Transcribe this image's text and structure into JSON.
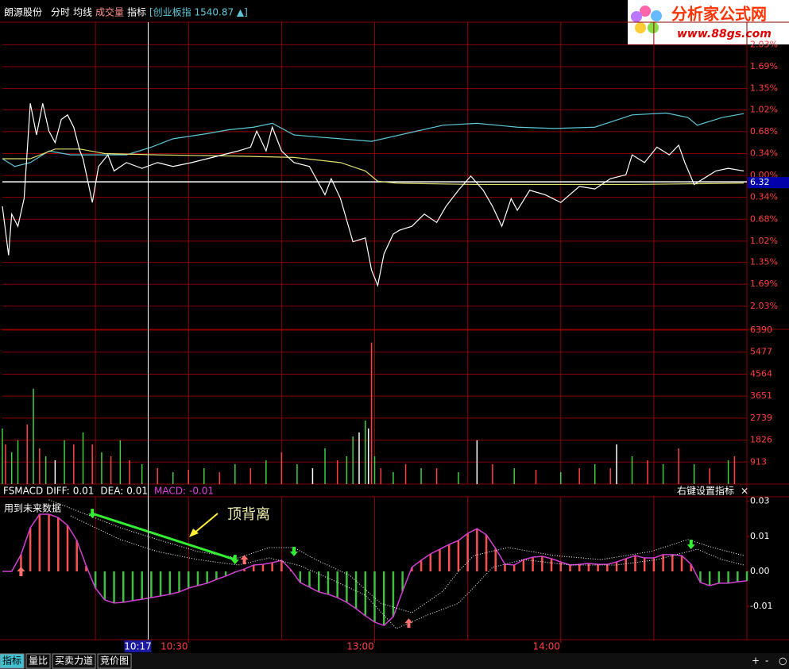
{
  "header": {
    "stock": "朗源股份",
    "menu": [
      "分时",
      "均线",
      "成交量",
      "指标"
    ],
    "index_label": "[创业板指 1540.87 ▲]",
    "logo_title": "分析家公式网",
    "logo_url": "www.88gs.com"
  },
  "time_axis": {
    "xlim": [
      0,
      240
    ],
    "xticks": [
      {
        "value": 60,
        "label": "10:30"
      },
      {
        "value": 120,
        "label": "13:00"
      },
      {
        "value": 180,
        "label": "14:00"
      }
    ],
    "grid": [
      30,
      60,
      90,
      120,
      150,
      180,
      210
    ],
    "cursor": {
      "value": 47,
      "label": "10:17"
    }
  },
  "chart_data": [
    {
      "type": "line",
      "ylim": [
        -2.39,
        2.38
      ],
      "grid": true,
      "prev_close": 6.32,
      "yticks": [
        {
          "value": 2.03,
          "label": "2.03%"
        },
        {
          "value": 1.69,
          "label": "1.69%"
        },
        {
          "value": 1.35,
          "label": "1.35%"
        },
        {
          "value": 1.02,
          "label": "1.02%"
        },
        {
          "value": 0.68,
          "label": "0.68%"
        },
        {
          "value": 0.34,
          "label": "0.34%"
        },
        {
          "value": 0,
          "label": "0.00%"
        },
        {
          "value": -0.34,
          "label": "0.34%"
        },
        {
          "value": -0.68,
          "label": "0.68%"
        },
        {
          "value": -1.02,
          "label": "1.02%"
        },
        {
          "value": -1.35,
          "label": "1.35%"
        },
        {
          "value": -1.69,
          "label": "1.69%"
        },
        {
          "value": -2.03,
          "label": "2.03%"
        }
      ],
      "series": [
        {
          "color": "#5fc8d8",
          "x": [
            0,
            4,
            9,
            15,
            22,
            27,
            33,
            40,
            48,
            55,
            66,
            73,
            81,
            87,
            94,
            101,
            109,
            119,
            130,
            142,
            153,
            166,
            178,
            191,
            203,
            214,
            221,
            224,
            232,
            239
          ],
          "values": [
            0.26,
            0.14,
            0.2,
            0.38,
            0.32,
            0.32,
            0.32,
            0.32,
            0.44,
            0.57,
            0.65,
            0.71,
            0.75,
            0.81,
            0.63,
            0.6,
            0.57,
            0.53,
            0.65,
            0.78,
            0.81,
            0.75,
            0.73,
            0.75,
            0.94,
            0.97,
            0.9,
            0.78,
            0.9,
            0.96
          ]
        },
        {
          "color": "#e0e070",
          "x": [
            0,
            9,
            17,
            25,
            33,
            50,
            76,
            94,
            109,
            117,
            121,
            127,
            152,
            178,
            203,
            239
          ],
          "values": [
            0.26,
            0.26,
            0.41,
            0.41,
            0.34,
            0.32,
            0.3,
            0.28,
            0.2,
            0.07,
            -0.09,
            -0.12,
            -0.14,
            -0.14,
            -0.14,
            -0.12
          ]
        },
        {
          "color": "#ffffff",
          "x": [
            0,
            2,
            3,
            5,
            7,
            9,
            11,
            13,
            15,
            17,
            19,
            21,
            23,
            25,
            26,
            29,
            31,
            34,
            36,
            40,
            45,
            50,
            55,
            61,
            66,
            71,
            76,
            80,
            82,
            85,
            87,
            90,
            94,
            99,
            104,
            106,
            109,
            113,
            117,
            119,
            121,
            123,
            126,
            128,
            132,
            136,
            140,
            143,
            147,
            151,
            155,
            158,
            161,
            164,
            166,
            170,
            175,
            180,
            186,
            191,
            196,
            201,
            203,
            207,
            211,
            215,
            218,
            220,
            223,
            226,
            230,
            234,
            239
          ],
          "values": [
            -0.48,
            -1.24,
            -0.6,
            -0.79,
            -0.36,
            1.12,
            0.63,
            1.12,
            0.69,
            0.51,
            0.87,
            0.94,
            0.75,
            0.38,
            0.26,
            -0.42,
            0.14,
            0.32,
            0.07,
            0.2,
            0.11,
            0.2,
            0.14,
            0.2,
            0.26,
            0.32,
            0.38,
            0.44,
            0.69,
            0.38,
            0.75,
            0.38,
            0.2,
            0.14,
            -0.3,
            -0.05,
            -0.36,
            -1.03,
            -0.97,
            -1.47,
            -1.71,
            -1.22,
            -0.91,
            -0.85,
            -0.79,
            -0.6,
            -0.73,
            -0.48,
            -0.23,
            -0.01,
            -0.23,
            -0.48,
            -0.79,
            -0.36,
            -0.54,
            -0.23,
            -0.3,
            -0.42,
            -0.17,
            -0.21,
            -0.05,
            0.01,
            0.32,
            0.2,
            0.44,
            0.32,
            0.47,
            0.2,
            -0.14,
            -0.05,
            0.07,
            0.11,
            0.07
          ]
        }
      ]
    },
    {
      "type": "bar",
      "ylim": [
        0,
        6423
      ],
      "grid": true,
      "yticks": [
        6390,
        5477,
        4564,
        3651,
        2739,
        1826,
        913
      ],
      "x": [
        0,
        1,
        3,
        5,
        8,
        10,
        12,
        14,
        17,
        20,
        23,
        26,
        29,
        32,
        35,
        38,
        41,
        45,
        50,
        55,
        60,
        65,
        70,
        75,
        80,
        85,
        90,
        95,
        100,
        104,
        108,
        111,
        113,
        115,
        117,
        118,
        119,
        120,
        122,
        126,
        130,
        135,
        140,
        147,
        153,
        158,
        165,
        172,
        180,
        186,
        191,
        196,
        198,
        203,
        208,
        213,
        218,
        223,
        228,
        234,
        236
      ],
      "values": [
        2310,
        1650,
        1320,
        1815,
        2475,
        3960,
        1485,
        1155,
        990,
        1815,
        1650,
        2145,
        1650,
        1320,
        1155,
        1815,
        990,
        825,
        660,
        495,
        594,
        660,
        495,
        825,
        660,
        990,
        1320,
        825,
        660,
        1485,
        990,
        1155,
        1980,
        2145,
        2640,
        2310,
        5874,
        1155,
        660,
        495,
        825,
        660,
        660,
        495,
        1815,
        825,
        660,
        594,
        495,
        660,
        825,
        660,
        1650,
        1155,
        990,
        825,
        1485,
        825,
        660,
        990,
        1155
      ],
      "colors": [
        "#3fcf3f",
        "#ff4040",
        "#3fcf3f",
        "#3fcf3f",
        "#ff4040",
        "#3fcf3f",
        "#ff4040",
        "#3fcf3f",
        "#ffffff",
        "#3fcf3f",
        "#ff4040",
        "#3fcf3f",
        "#ff4040",
        "#3fcf3f",
        "#ff4040",
        "#3fcf3f",
        "#ff4040",
        "#3fcf3f",
        "#ff4040",
        "#3fcf3f",
        "#ff4040",
        "#3fcf3f",
        "#ff4040",
        "#3fcf3f",
        "#ff4040",
        "#3fcf3f",
        "#ff4040",
        "#3fcf3f",
        "#ffffff",
        "#3fcf3f",
        "#ff4040",
        "#3fcf3f",
        "#3fcf3f",
        "#ffffff",
        "#3fcf3f",
        "#ffffff",
        "#ff4040",
        "#3fcf3f",
        "#ff4040",
        "#3fcf3f",
        "#ff4040",
        "#3fcf3f",
        "#ff4040",
        "#3fcf3f",
        "#ffffff",
        "#ff4040",
        "#3fcf3f",
        "#ff4040",
        "#3fcf3f",
        "#ff4040",
        "#3fcf3f",
        "#ff4040",
        "#ffffff",
        "#3fcf3f",
        "#ff4040",
        "#3fcf3f",
        "#ff4040",
        "#3fcf3f",
        "#ff4040",
        "#3fcf3f",
        "#ff4040"
      ]
    },
    {
      "type": "macd",
      "indicator": "FSMACD",
      "legend": [
        {
          "label": "DIFF:",
          "value": 0.01
        },
        {
          "label": "DEA:",
          "value": 0.01
        },
        {
          "label": "MACD:",
          "value": -0.01
        }
      ],
      "settings_label": "右键设置指标",
      "close_label": "×",
      "note": "用到未来数据",
      "annotation": "顶背离",
      "ylim": [
        -0.0289,
        0.0316
      ],
      "yticks": [
        {
          "value": 0.0297,
          "label": "0.03"
        },
        {
          "value": 0.0148,
          "label": "0.01"
        },
        {
          "value": 0,
          "label": "0.00"
        },
        {
          "value": -0.0148,
          "label": "-0.01"
        }
      ],
      "up_color": "#ff5050",
      "down_color": "#40c040",
      "line_color": "#d040d0",
      "x": [
        0,
        3,
        6,
        9,
        12,
        15,
        18,
        21,
        24,
        27,
        30,
        33,
        36,
        39,
        42,
        45,
        48,
        51,
        54,
        57,
        60,
        63,
        66,
        69,
        72,
        75,
        78,
        81,
        84,
        87,
        90,
        93,
        96,
        99,
        102,
        105,
        108,
        111,
        114,
        117,
        120,
        123,
        126,
        129,
        132,
        135,
        138,
        141,
        144,
        147,
        150,
        153,
        156,
        159,
        162,
        165,
        168,
        171,
        174,
        177,
        180,
        183,
        186,
        189,
        192,
        195,
        198,
        201,
        204,
        207,
        210,
        213,
        216,
        219,
        222,
        225,
        228,
        231,
        234,
        237,
        240
      ],
      "values": [
        0,
        0,
        0.0071,
        0.0185,
        0.0242,
        0.0242,
        0.0228,
        0.0195,
        0.0131,
        0.0024,
        -0.0071,
        -0.0121,
        -0.0134,
        -0.0131,
        -0.0124,
        -0.0118,
        -0.0111,
        -0.0104,
        -0.0097,
        -0.0087,
        -0.0071,
        -0.006,
        -0.005,
        -0.0034,
        -0.002,
        -0.0003,
        0.001,
        0.0027,
        0.003,
        0.0037,
        0.0047,
        0.0007,
        -0.0047,
        -0.0067,
        -0.0087,
        -0.0097,
        -0.0111,
        -0.0131,
        -0.0158,
        -0.0188,
        -0.0215,
        -0.0229,
        -0.0192,
        -0.0084,
        0.0017,
        0.0047,
        0.0074,
        0.0094,
        0.0114,
        0.0131,
        0.0161,
        0.0181,
        0.0155,
        0.0097,
        0.003,
        0.0027,
        0.005,
        0.006,
        0.0064,
        0.0054,
        0.004,
        0.0027,
        0.003,
        0.0034,
        0.003,
        0.003,
        0.004,
        0.0054,
        0.0067,
        0.0057,
        0.0057,
        0.0071,
        0.0071,
        0.0067,
        0.003,
        -0.0047,
        -0.006,
        -0.005,
        -0.005,
        -0.0044,
        -0.004
      ],
      "series": [
        {
          "x": [
            15,
            25,
            38,
            50,
            63,
            76,
            86,
            94,
            101,
            112,
            122,
            132,
            142,
            147,
            152,
            163,
            178,
            193,
            209,
            221,
            229,
            239
          ],
          "values": [
            0.0303,
            0.0252,
            0.0185,
            0.0135,
            0.0084,
            0.0057,
            0.0101,
            0.0101,
            0.005,
            -0.0017,
            -0.0135,
            -0.0175,
            -0.0084,
            0,
            0.0067,
            0.0101,
            0.0067,
            0.005,
            0.0084,
            0.0135,
            0.0101,
            0.0067
          ]
        },
        {
          "x": [
            22,
            38,
            50,
            63,
            76,
            86,
            96,
            106,
            117,
            127,
            137,
            147,
            152,
            158,
            168,
            183,
            198,
            211,
            224,
            232,
            239
          ],
          "values": [
            0.0235,
            0.0135,
            0.0084,
            0.005,
            0.0027,
            0.0057,
            0.0024,
            -0.0034,
            -0.0101,
            -0.0242,
            -0.0185,
            -0.0135,
            -0.0067,
            0.0017,
            0.005,
            0.0027,
            0.0027,
            0.005,
            0.0094,
            0.005,
            0.0027
          ]
        }
      ],
      "up_signals": {
        "x": [
          6,
          78,
          131
        ],
        "y": [
          0,
          0.005,
          -0.0219
        ]
      },
      "down_signals": {
        "x": [
          29,
          75,
          94,
          222
        ],
        "y": [
          0.0245,
          0.005,
          0.0084,
          0.0114
        ]
      }
    }
  ],
  "footer": {
    "tabs": [
      "指标",
      "量比",
      "买卖力道",
      "竞价图"
    ],
    "buttons": [
      "+",
      "-",
      "○"
    ]
  }
}
